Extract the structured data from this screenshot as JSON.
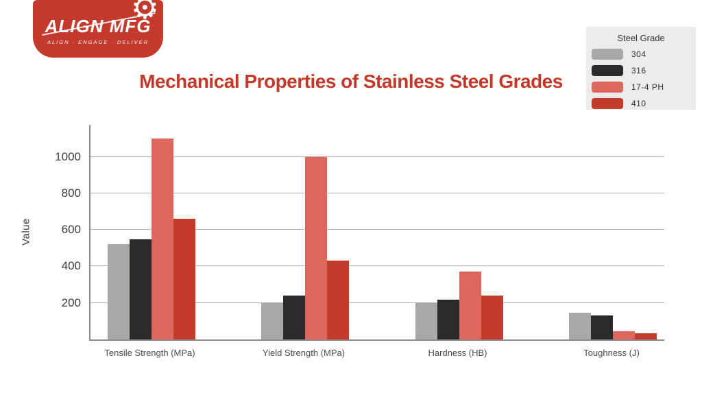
{
  "logo": {
    "brand": "ALIGN MFG",
    "tagline": "ALIGN · ENGAGE · DELIVER"
  },
  "chart_data": {
    "type": "bar",
    "title": "Mechanical Properties of Stainless Steel Grades",
    "categories": [
      "Tensile Strength (MPa)",
      "Yield Strength (MPa)",
      "Hardness (HB)",
      "Toughness (J)"
    ],
    "series": [
      {
        "name": "304",
        "color": "#a8a8a8",
        "values": [
          520,
          200,
          200,
          145
        ]
      },
      {
        "name": "316",
        "color": "#2b292a",
        "values": [
          550,
          240,
          217,
          130
        ]
      },
      {
        "name": "17-4 PH",
        "color": "#db675d",
        "values": [
          1100,
          1000,
          370,
          45
        ]
      },
      {
        "name": "410",
        "color": "#c23b2b",
        "values": [
          660,
          430,
          240,
          35
        ]
      }
    ],
    "xlabel": "",
    "ylabel": "Value",
    "yticks": [
      200,
      400,
      600,
      800,
      1000
    ],
    "ylim": [
      0,
      1175
    ],
    "grid": true,
    "legend_title": "Steel Grade",
    "legend_position": "top-right"
  },
  "colors": {
    "background": "#fdfdfb",
    "logo_bg": "#c43a2d",
    "title_text": "#c2392b",
    "grid": "#b3b3b3",
    "axis": "#8c8c8c",
    "legend_bg": "#edeceb"
  }
}
